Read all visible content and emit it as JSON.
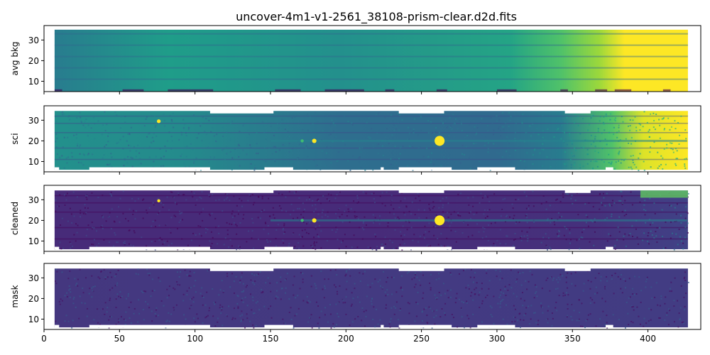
{
  "title": "uncover-4m1-v1-2561_38108-prism-clear.d2d.fits",
  "chart_data": {
    "type": "heatmap",
    "colormap": "viridis",
    "xlim": [
      0,
      435
    ],
    "ylim": [
      5,
      37
    ],
    "xticks": [
      0,
      50,
      100,
      150,
      200,
      250,
      300,
      350,
      400
    ],
    "yticks": [
      10,
      20,
      30
    ],
    "shared_x": true,
    "grid": false,
    "panels": [
      {
        "ylabel": "avg bkg",
        "footprint": [
          [
            7,
            426.5,
            5,
            35
          ]
        ],
        "notches_bottom": [
          [
            7,
            12
          ],
          [
            52,
            66
          ],
          [
            82,
            112
          ],
          [
            153,
            170
          ],
          [
            186,
            212
          ],
          [
            226,
            232
          ],
          [
            260,
            267
          ],
          [
            300,
            313
          ],
          [
            342,
            347
          ],
          [
            365,
            373
          ],
          [
            378,
            389
          ],
          [
            410,
            415
          ]
        ],
        "stripes_y": [
          11,
          16.5,
          22,
          27.5,
          33
        ],
        "features": [
          {
            "desc": "background ramps up strongly redward",
            "x_start": 330,
            "x_end": 426,
            "level_start": 0.55,
            "level_end": 1.0
          }
        ]
      },
      {
        "ylabel": "sci",
        "footprint": [
          [
            7,
            426.5,
            6,
            34.5
          ]
        ],
        "notches_top": [
          [
            110,
            152
          ],
          [
            235,
            265
          ],
          [
            345,
            362
          ]
        ],
        "notches_bottom": [
          [
            7,
            10
          ],
          [
            30,
            110
          ],
          [
            146,
            165
          ],
          [
            223,
            225
          ],
          [
            235,
            270
          ],
          [
            287,
            312
          ],
          [
            372,
            377
          ]
        ],
        "trace_y": 20,
        "sources": [
          {
            "x": 76,
            "y": 29.5,
            "size": 1.2,
            "color": "#fde725"
          },
          {
            "x": 171,
            "y": 20,
            "size": 1.0,
            "color": "#3fbc73"
          },
          {
            "x": 179,
            "y": 20,
            "size": 1.4,
            "color": "#fde725"
          },
          {
            "x": 262,
            "y": 20,
            "size": 3.2,
            "color": "#fde725"
          }
        ]
      },
      {
        "ylabel": "cleaned",
        "footprint": [
          [
            7,
            426.5,
            6,
            34.5
          ]
        ],
        "notches_top": [
          [
            110,
            152
          ],
          [
            235,
            265
          ],
          [
            345,
            362
          ]
        ],
        "notches_bottom": [
          [
            7,
            10
          ],
          [
            30,
            110
          ],
          [
            146,
            165
          ],
          [
            223,
            225
          ],
          [
            235,
            270
          ],
          [
            287,
            312
          ],
          [
            372,
            377
          ]
        ],
        "trace_y": 20,
        "sources": [
          {
            "x": 76,
            "y": 29.5,
            "size": 1.0,
            "color": "#fde725"
          },
          {
            "x": 171,
            "y": 20,
            "size": 1.0,
            "color": "#3fbc73"
          },
          {
            "x": 179,
            "y": 20,
            "size": 1.4,
            "color": "#fde725"
          },
          {
            "x": 262,
            "y": 20,
            "size": 3.2,
            "color": "#fde725"
          }
        ]
      },
      {
        "ylabel": "mask",
        "footprint": [
          [
            7,
            426.5,
            6,
            34.5
          ]
        ],
        "notches_top": [
          [
            110,
            152
          ],
          [
            235,
            265
          ],
          [
            345,
            362
          ]
        ],
        "notches_bottom": [
          [
            7,
            10
          ],
          [
            30,
            110
          ],
          [
            146,
            165
          ],
          [
            223,
            225
          ],
          [
            235,
            270
          ],
          [
            287,
            312
          ],
          [
            372,
            377
          ]
        ]
      }
    ]
  }
}
